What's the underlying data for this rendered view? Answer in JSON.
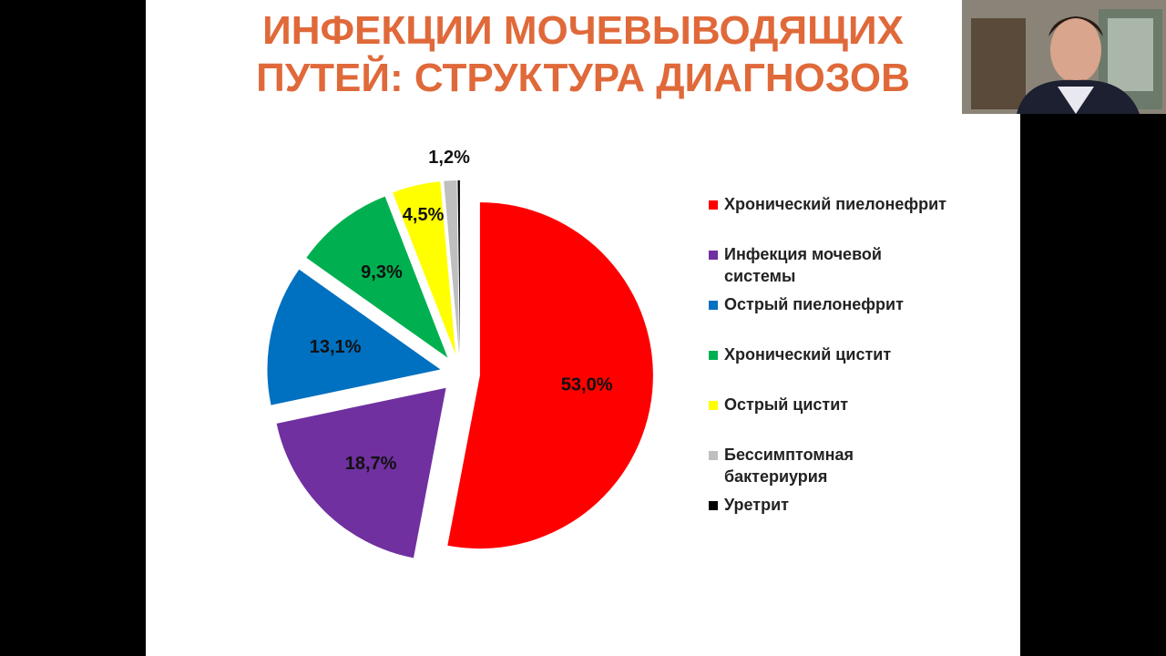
{
  "chart_data": {
    "type": "pie",
    "title": "ИНФЕКЦИИ МОЧЕВЫВОДЯЩИХ ПУТЕЙ: СТРУКТУРА ДИАГНОЗОВ",
    "categories": [
      "Хронический пиелонефрит",
      "Инфекция мочевой системы",
      "Острый пиелонефрит",
      "Хронический цистит",
      "Острый цистит",
      "Бессимптомная бактериурия",
      "Уретрит"
    ],
    "values": [
      53.0,
      18.7,
      13.1,
      9.3,
      4.5,
      1.2,
      0.2
    ],
    "value_labels": [
      "53,0%",
      "18,7%",
      "13,1%",
      "9,3%",
      "4,5%",
      "1,2%",
      null
    ],
    "colors": [
      "#ff0000",
      "#7030a0",
      "#0070c0",
      "#00b050",
      "#ffff00",
      "#bfbfbf",
      "#000000"
    ],
    "legend": "right"
  }
}
